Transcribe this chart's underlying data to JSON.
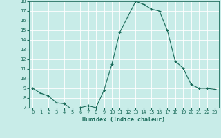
{
  "x": [
    0,
    1,
    2,
    3,
    4,
    5,
    6,
    7,
    8,
    9,
    10,
    11,
    12,
    13,
    14,
    15,
    16,
    17,
    18,
    19,
    20,
    21,
    22,
    23
  ],
  "y": [
    9.0,
    8.5,
    8.2,
    7.5,
    7.4,
    6.8,
    7.0,
    7.2,
    7.0,
    8.8,
    11.5,
    14.8,
    16.4,
    18.0,
    17.7,
    17.2,
    17.0,
    15.0,
    11.8,
    11.1,
    9.4,
    9.0,
    9.0,
    8.9
  ],
  "xlabel": "Humidex (Indice chaleur)",
  "ylim": [
    7,
    18
  ],
  "xlim": [
    -0.5,
    23.5
  ],
  "yticks": [
    7,
    8,
    9,
    10,
    11,
    12,
    13,
    14,
    15,
    16,
    17,
    18
  ],
  "xticks": [
    0,
    1,
    2,
    3,
    4,
    5,
    6,
    7,
    8,
    9,
    10,
    11,
    12,
    13,
    14,
    15,
    16,
    17,
    18,
    19,
    20,
    21,
    22,
    23
  ],
  "line_color": "#1a6b5a",
  "marker_color": "#1a6b5a",
  "bg_color": "#c8ece8",
  "grid_color": "#b0d8d0",
  "text_color": "#1a6b5a",
  "tick_label_color": "#1a6b5a",
  "tick_fontsize": 5.0,
  "xlabel_fontsize": 6.0
}
